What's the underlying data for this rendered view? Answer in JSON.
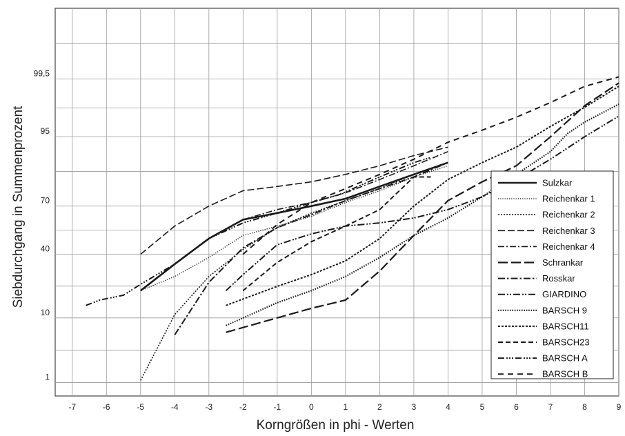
{
  "chart_data": {
    "type": "line",
    "xlabel": "Korngrößen in phi - Werten",
    "ylabel": "Siebdurchgang in Summenprozent",
    "x_ticks": [
      -7,
      -6,
      -5,
      -4,
      -3,
      -2,
      -1,
      0,
      1,
      2,
      3,
      4,
      5,
      6,
      7,
      8,
      9
    ],
    "y_ticks": [
      {
        "value": 1,
        "label": "1"
      },
      {
        "value": 10,
        "label": "10"
      },
      {
        "value": 40,
        "label": "40"
      },
      {
        "value": 70,
        "label": "70"
      },
      {
        "value": 95,
        "label": "95"
      },
      {
        "value": 99.5,
        "label": "99,5"
      }
    ],
    "xlim": [
      -7.5,
      9
    ],
    "y_scale": "probability",
    "grid": true,
    "legend_position": "lower-right",
    "series": [
      {
        "name": "Sulzkar",
        "style": "solid-thick",
        "points": [
          [
            -5,
            20
          ],
          [
            -4,
            34
          ],
          [
            -3,
            50
          ],
          [
            -2,
            62
          ],
          [
            -1,
            66
          ],
          [
            0,
            70
          ],
          [
            1,
            74
          ],
          [
            2,
            80
          ],
          [
            3,
            85
          ],
          [
            4,
            89
          ]
        ]
      },
      {
        "name": "Reichenkar 1",
        "style": "dotted-fine",
        "points": [
          [
            -5,
            20
          ],
          [
            -4,
            27
          ],
          [
            -3,
            38
          ],
          [
            -2,
            52
          ],
          [
            -1,
            58
          ],
          [
            0,
            64
          ],
          [
            1,
            72
          ],
          [
            2,
            78
          ],
          [
            3,
            84
          ],
          [
            4,
            88
          ]
        ]
      },
      {
        "name": "Reichenkar 2",
        "style": "dotted-medium",
        "points": [
          [
            -5,
            1.1
          ],
          [
            -4,
            11
          ],
          [
            -3,
            27
          ],
          [
            -2,
            43
          ],
          [
            -1,
            57
          ],
          [
            0,
            66
          ],
          [
            1,
            73
          ],
          [
            2,
            79
          ],
          [
            3,
            85
          ],
          [
            4,
            89
          ]
        ]
      },
      {
        "name": "Reichenkar 3",
        "style": "dashed-long",
        "points": [
          [
            -5,
            40
          ],
          [
            -4,
            58
          ],
          [
            -3,
            70
          ],
          [
            -2,
            78
          ],
          [
            -1,
            80
          ],
          [
            0,
            82
          ],
          [
            1,
            85
          ],
          [
            2,
            88
          ],
          [
            3,
            91
          ],
          [
            4,
            93
          ]
        ]
      },
      {
        "name": "Reichenkar 4",
        "style": "dash-dot",
        "points": [
          [
            -4,
            34
          ],
          [
            -3,
            50
          ],
          [
            -2,
            62
          ],
          [
            -1,
            68
          ],
          [
            0,
            72
          ],
          [
            1,
            77
          ],
          [
            2,
            83
          ],
          [
            3,
            88
          ],
          [
            4,
            92
          ]
        ]
      },
      {
        "name": "Schrankar",
        "style": "dashed-heavy",
        "points": [
          [
            -2.5,
            6.5
          ],
          [
            -1,
            10
          ],
          [
            0,
            13
          ],
          [
            1,
            16
          ],
          [
            2,
            30
          ],
          [
            3,
            52
          ],
          [
            4,
            73
          ],
          [
            5,
            82
          ],
          [
            6,
            88
          ],
          [
            7,
            95
          ],
          [
            8,
            98.4
          ],
          [
            9,
            99.4
          ]
        ]
      },
      {
        "name": "Rosskar",
        "style": "dash-dot-heavy",
        "points": [
          [
            -4,
            6
          ],
          [
            -3,
            24
          ],
          [
            -2,
            44
          ],
          [
            -1,
            57
          ],
          [
            0,
            65
          ],
          [
            1,
            73
          ],
          [
            2,
            79
          ],
          [
            3,
            84
          ],
          [
            4,
            89
          ]
        ]
      },
      {
        "name": "GIARDINO",
        "style": "dash-dot-dot",
        "points": [
          [
            -2.5,
            20
          ],
          [
            -2,
            28
          ],
          [
            -1,
            46
          ],
          [
            0,
            53
          ],
          [
            1,
            58
          ],
          [
            2,
            60
          ],
          [
            3,
            63
          ],
          [
            4,
            68
          ],
          [
            5,
            75
          ],
          [
            6,
            83
          ],
          [
            7,
            90
          ],
          [
            8,
            95
          ],
          [
            9,
            97.6
          ]
        ]
      },
      {
        "name": "BARSCH 9",
        "style": "dotted-heavy",
        "points": [
          [
            -2.5,
            8
          ],
          [
            -1,
            15
          ],
          [
            0,
            20
          ],
          [
            1,
            27
          ],
          [
            2,
            38
          ],
          [
            3,
            52
          ],
          [
            4,
            63
          ],
          [
            5,
            75
          ],
          [
            6,
            85
          ],
          [
            7,
            92
          ],
          [
            7.5,
            95.5
          ],
          [
            8,
            97
          ],
          [
            9,
            98.5
          ]
        ]
      },
      {
        "name": "BARSCH11",
        "style": "short-dash",
        "points": [
          [
            -2.5,
            14
          ],
          [
            -1,
            22
          ],
          [
            0,
            28
          ],
          [
            1,
            36
          ],
          [
            2,
            50
          ],
          [
            3,
            70
          ],
          [
            4,
            83
          ],
          [
            5,
            89
          ],
          [
            6,
            93
          ],
          [
            7,
            96.5
          ],
          [
            8,
            98.3
          ],
          [
            9,
            99.3
          ]
        ]
      },
      {
        "name": "BARSCH23",
        "style": "medium-dash",
        "points": [
          [
            -2,
            20
          ],
          [
            -1,
            35
          ],
          [
            0,
            48
          ],
          [
            1,
            58
          ],
          [
            2,
            68
          ],
          [
            3,
            84
          ],
          [
            3.5,
            84
          ]
        ]
      },
      {
        "name": "BARSCH A",
        "style": "dash-dot-dot-dot",
        "points": [
          [
            -6.6,
            14
          ],
          [
            -6.2,
            16
          ],
          [
            -5.5,
            18
          ],
          [
            -5,
            23
          ],
          [
            -4,
            34
          ],
          [
            -3,
            50
          ],
          [
            -2,
            60
          ],
          [
            -1,
            66
          ],
          [
            0,
            72
          ],
          [
            0.8,
            76
          ],
          [
            2,
            84
          ],
          [
            3,
            89
          ],
          [
            3.5,
            90.5
          ]
        ]
      },
      {
        "name": "BARSCH B",
        "style": "dash-gap",
        "points": [
          [
            -2,
            40
          ],
          [
            -1,
            59
          ],
          [
            0,
            72
          ],
          [
            1,
            79
          ],
          [
            2,
            85
          ],
          [
            3,
            90
          ],
          [
            4,
            94
          ],
          [
            5,
            96
          ],
          [
            6,
            97.5
          ],
          [
            7,
            98.6
          ],
          [
            8,
            99.3
          ],
          [
            9,
            99.55
          ]
        ]
      }
    ]
  }
}
